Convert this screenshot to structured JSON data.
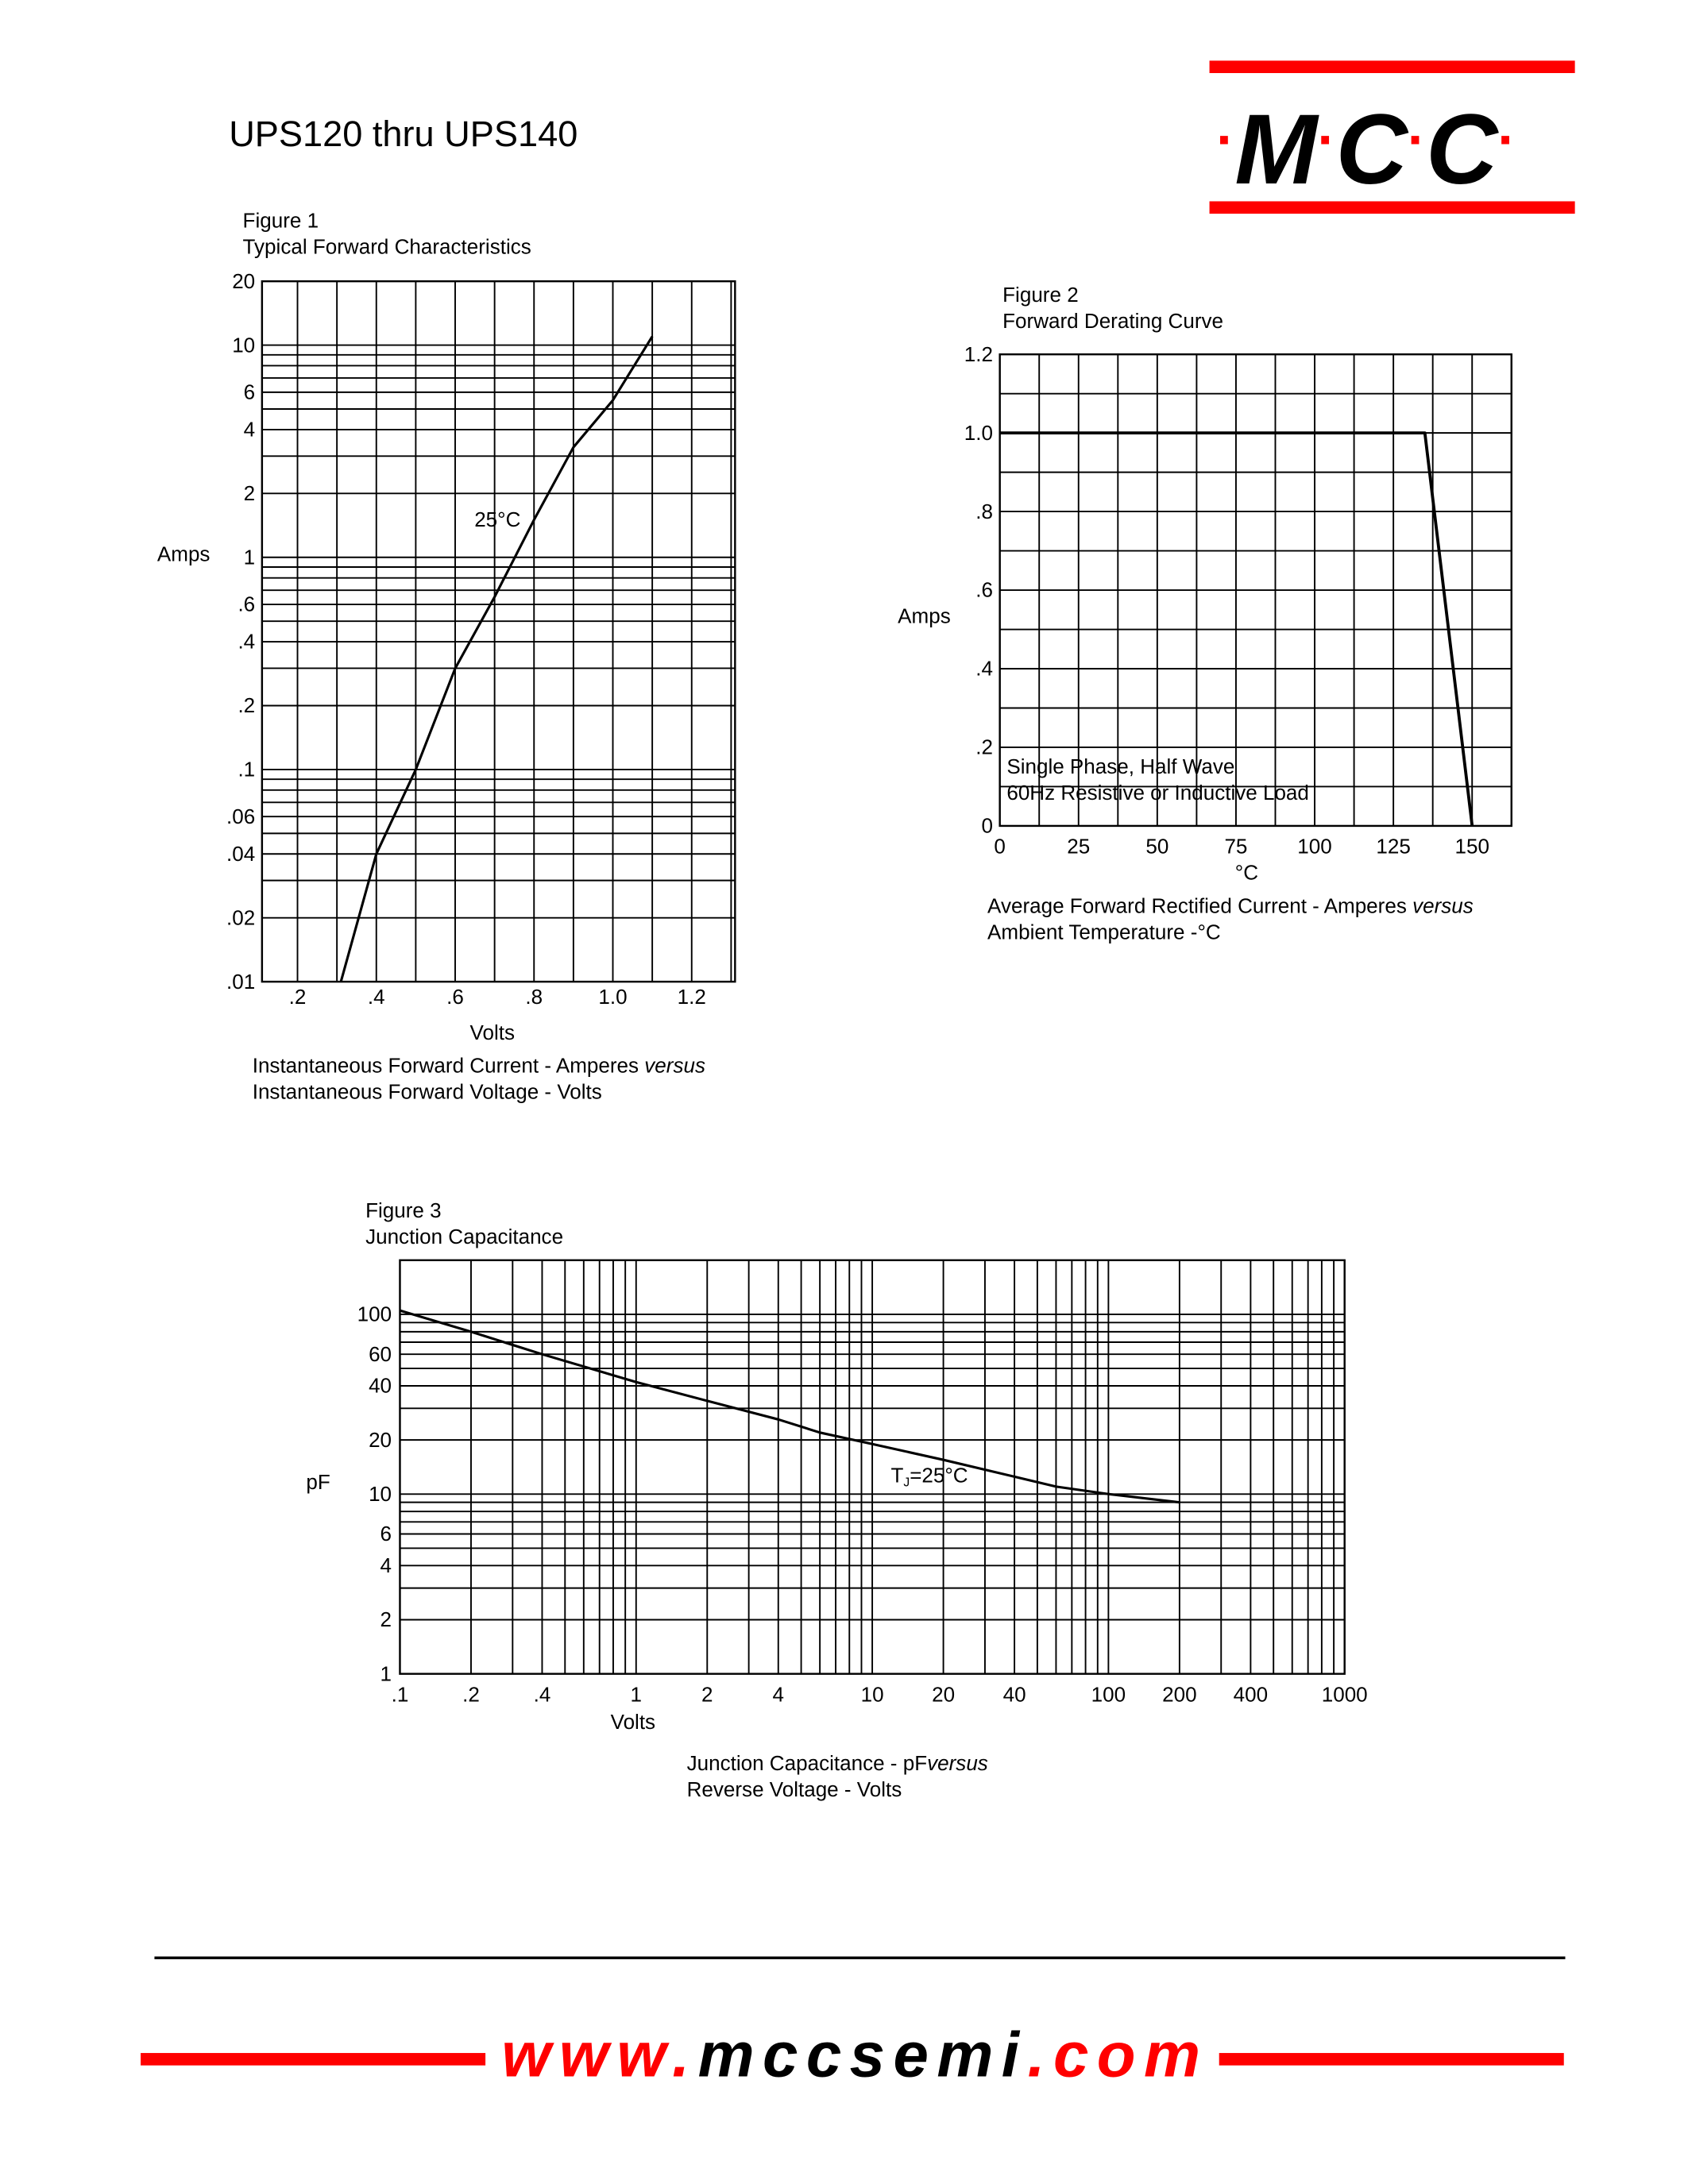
{
  "header": {
    "title": "UPS120 thru UPS140",
    "logo": {
      "letters": [
        "M",
        "C",
        "C"
      ],
      "dot": "·",
      "brand_red": "#ff0000"
    }
  },
  "figures": [
    {
      "label": "Figure 1",
      "title": "Typical Forward Characteristics",
      "caption_line1": "Instantaneous Forward Current - Amperes ",
      "caption_versus": "versus",
      "caption_line2": "Instantaneous Forward Voltage - Volts"
    },
    {
      "label": "Figure 2",
      "title": "Forward Derating Curve",
      "caption_line1": "Average Forward Rectified Current  -  Amperes ",
      "caption_versus": "versus",
      "caption_line2": "Ambient Temperature  -°C"
    },
    {
      "label": "Figure 3",
      "title": "Junction Capacitance",
      "caption_line1": "Junction Capacitance - pF",
      "caption_versus": "versus",
      "caption_line2": "Reverse Voltage - Volts"
    }
  ],
  "chart_data": [
    {
      "type": "line",
      "xlabel": "Volts",
      "ylabel": "Amps",
      "x_scale": "linear",
      "y_scale": "log",
      "xlim": [
        0.11,
        1.31
      ],
      "ylim": [
        0.01,
        20
      ],
      "grid": true,
      "x_ticks": [
        {
          "v": 0.2,
          "label": ".2"
        },
        {
          "v": 0.4,
          "label": ".4"
        },
        {
          "v": 0.6,
          "label": ".6"
        },
        {
          "v": 0.8,
          "label": ".8"
        },
        {
          "v": 1.0,
          "label": "1.0"
        },
        {
          "v": 1.2,
          "label": "1.2"
        }
      ],
      "y_ticks": [
        {
          "v": 20,
          "label": "20"
        },
        {
          "v": 10,
          "label": "10"
        },
        {
          "v": 6,
          "label": "6"
        },
        {
          "v": 4,
          "label": "4"
        },
        {
          "v": 2,
          "label": "2"
        },
        {
          "v": 1,
          "label": "1"
        },
        {
          "v": 0.6,
          "label": ".6"
        },
        {
          "v": 0.4,
          "label": ".4"
        },
        {
          "v": 0.2,
          "label": ".2"
        },
        {
          "v": 0.1,
          "label": ".1"
        },
        {
          "v": 0.06,
          "label": ".06"
        },
        {
          "v": 0.04,
          "label": ".04"
        },
        {
          "v": 0.02,
          "label": ".02"
        },
        {
          "v": 0.01,
          "label": ".01"
        }
      ],
      "series": [
        {
          "name": "25°C",
          "x": [
            0.31,
            0.4,
            0.5,
            0.6,
            0.7,
            0.8,
            0.9,
            1.0,
            1.1
          ],
          "y": [
            0.01,
            0.04,
            0.1,
            0.3,
            0.65,
            1.5,
            3.3,
            5.5,
            11
          ]
        }
      ],
      "annotations": [
        "25°C"
      ]
    },
    {
      "type": "line",
      "xlabel": "°C",
      "ylabel": "Amps",
      "x_scale": "linear",
      "y_scale": "linear",
      "xlim": [
        0,
        162.5
      ],
      "ylim": [
        0,
        1.2
      ],
      "grid": true,
      "x_ticks": [
        {
          "v": 0,
          "label": "0"
        },
        {
          "v": 25,
          "label": "25"
        },
        {
          "v": 50,
          "label": "50"
        },
        {
          "v": 75,
          "label": "75"
        },
        {
          "v": 100,
          "label": "100"
        },
        {
          "v": 125,
          "label": "125"
        },
        {
          "v": 150,
          "label": "150"
        }
      ],
      "y_ticks": [
        {
          "v": 1.2,
          "label": "1.2"
        },
        {
          "v": 1.0,
          "label": "1.0"
        },
        {
          "v": 0.8,
          "label": ".8"
        },
        {
          "v": 0.6,
          "label": ".6"
        },
        {
          "v": 0.4,
          "label": ".4"
        },
        {
          "v": 0.2,
          "label": ".2"
        },
        {
          "v": 0,
          "label": "0"
        }
      ],
      "series": [
        {
          "x": [
            0,
            135,
            150
          ],
          "y": [
            1.0,
            1.0,
            0
          ]
        }
      ],
      "annotations": [
        "Single Phase, Half Wave",
        "60Hz Resistive or Inductive Load"
      ]
    },
    {
      "type": "line",
      "xlabel": "Volts",
      "ylabel": "pF",
      "x_scale": "log",
      "y_scale": "log",
      "xlim": [
        0.1,
        1000
      ],
      "ylim": [
        1,
        200
      ],
      "grid": true,
      "x_ticks": [
        {
          "v": 0.1,
          "label": ".1"
        },
        {
          "v": 0.2,
          "label": ".2"
        },
        {
          "v": 0.4,
          "label": ".4"
        },
        {
          "v": 1,
          "label": "1"
        },
        {
          "v": 2,
          "label": "2"
        },
        {
          "v": 4,
          "label": "4"
        },
        {
          "v": 10,
          "label": "10"
        },
        {
          "v": 20,
          "label": "20"
        },
        {
          "v": 40,
          "label": "40"
        },
        {
          "v": 100,
          "label": "100"
        },
        {
          "v": 200,
          "label": "200"
        },
        {
          "v": 400,
          "label": "400"
        },
        {
          "v": 1000,
          "label": "1000"
        }
      ],
      "y_ticks": [
        {
          "v": 100,
          "label": "100"
        },
        {
          "v": 60,
          "label": "60"
        },
        {
          "v": 40,
          "label": "40"
        },
        {
          "v": 20,
          "label": "20"
        },
        {
          "v": 10,
          "label": "10"
        },
        {
          "v": 6,
          "label": "6"
        },
        {
          "v": 4,
          "label": "4"
        },
        {
          "v": 2,
          "label": "2"
        },
        {
          "v": 1,
          "label": "1"
        }
      ],
      "series": [
        {
          "x": [
            0.1,
            0.2,
            0.4,
            1,
            2,
            4,
            6,
            10,
            20,
            40,
            60,
            100,
            200
          ],
          "y": [
            105,
            80,
            60,
            42,
            33,
            26,
            22,
            19,
            15.5,
            12.5,
            11,
            10,
            9
          ]
        }
      ],
      "annotations": [
        {
          "main": "T",
          "sub": "J",
          "rest": "=25°C"
        }
      ]
    }
  ],
  "footer": {
    "url_prefix": "www.",
    "url_domain": "mccsemi",
    "url_suffix": ".com"
  }
}
